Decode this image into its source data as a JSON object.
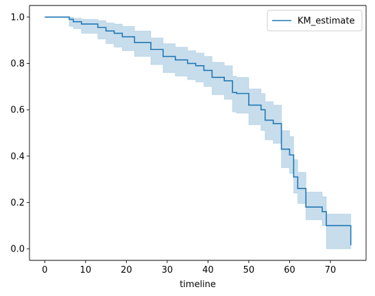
{
  "chart_data": {
    "type": "line",
    "title": "",
    "xlabel": "timeline",
    "ylabel": "",
    "xlim": [
      -3.75,
      78.75
    ],
    "ylim": [
      -0.05,
      1.05
    ],
    "xticks": [
      0,
      10,
      20,
      30,
      40,
      50,
      60,
      70
    ],
    "yticks": [
      0.0,
      0.2,
      0.4,
      0.6,
      0.8,
      1.0
    ],
    "xtick_labels": [
      "0",
      "10",
      "20",
      "30",
      "40",
      "50",
      "60",
      "70"
    ],
    "ytick_labels": [
      "0.0",
      "0.2",
      "0.4",
      "0.6",
      "0.8",
      "1.0"
    ],
    "grid": false,
    "legend_position": "top-right",
    "series": [
      {
        "name": "KM_estimate",
        "color": "#1f77b4",
        "ci_color": "#1f77b4",
        "ci_alpha": 0.25,
        "step": "post",
        "x": [
          0,
          6,
          7,
          9,
          13,
          15,
          17,
          19,
          22,
          26,
          29,
          32,
          35,
          37,
          39,
          41,
          44,
          46,
          47,
          50,
          53,
          54,
          56,
          58,
          60,
          61,
          62,
          64,
          67,
          68,
          69,
          75
        ],
        "y": [
          1.0,
          0.99,
          0.98,
          0.97,
          0.955,
          0.94,
          0.93,
          0.915,
          0.89,
          0.86,
          0.83,
          0.815,
          0.8,
          0.79,
          0.77,
          0.74,
          0.725,
          0.675,
          0.67,
          0.62,
          0.6,
          0.555,
          0.54,
          0.43,
          0.405,
          0.31,
          0.26,
          0.18,
          0.18,
          0.16,
          0.1,
          0.015
        ],
        "ci_lower": [
          1.0,
          0.96,
          0.95,
          0.93,
          0.905,
          0.885,
          0.87,
          0.855,
          0.83,
          0.795,
          0.76,
          0.745,
          0.73,
          0.72,
          0.7,
          0.665,
          0.645,
          0.59,
          0.585,
          0.535,
          0.51,
          0.47,
          0.455,
          0.35,
          0.325,
          0.24,
          0.195,
          0.125,
          0.125,
          0.1,
          0.0,
          0.0
        ],
        "ci_upper": [
          1.0,
          1.0,
          0.995,
          0.99,
          0.985,
          0.975,
          0.97,
          0.96,
          0.94,
          0.91,
          0.885,
          0.87,
          0.855,
          0.845,
          0.83,
          0.805,
          0.79,
          0.745,
          0.74,
          0.69,
          0.67,
          0.635,
          0.62,
          0.51,
          0.485,
          0.385,
          0.33,
          0.245,
          0.245,
          0.225,
          0.15,
          0.05
        ]
      }
    ]
  }
}
